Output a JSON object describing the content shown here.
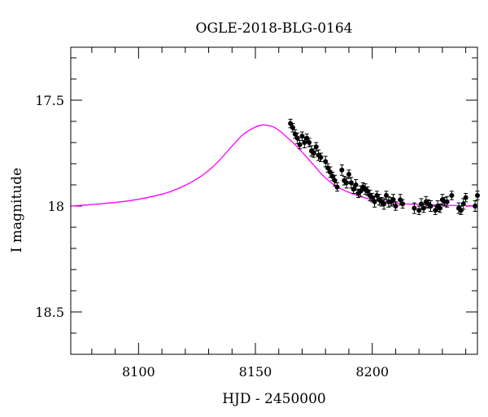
{
  "chart_data": {
    "type": "scatter",
    "title": "OGLE-2018-BLG-0164",
    "xlabel": "HJD - 2450000",
    "ylabel": "I magnitude",
    "xlim": [
      8071,
      8245
    ],
    "ylim": [
      18.7,
      17.25
    ],
    "y_inverted": true,
    "grid": false,
    "x_ticks": {
      "major": [
        8100,
        8150,
        8200
      ],
      "labels": [
        "8100",
        "8150",
        "8200"
      ],
      "minor_step": 10
    },
    "y_ticks": {
      "major": [
        17.5,
        18,
        18.5
      ],
      "labels": [
        "17.5",
        "18",
        "18.5"
      ],
      "minor_step": 0.1
    },
    "colors": {
      "model": "#ff00ff",
      "points": "#000000"
    },
    "model_curve": {
      "name": "",
      "x": [
        8071,
        8080,
        8090,
        8100,
        8110,
        8115,
        8120,
        8125,
        8130,
        8135,
        8140,
        8145,
        8150,
        8153,
        8156,
        8158,
        8160,
        8162,
        8164,
        8166,
        8168,
        8170,
        8172,
        8174,
        8176,
        8178,
        8180,
        8183,
        8186,
        8190,
        8195,
        8200,
        8205,
        8210,
        8215,
        8220,
        8225,
        8230,
        8235,
        8240,
        8245
      ],
      "y": [
        18.0,
        17.993,
        17.983,
        17.968,
        17.944,
        17.926,
        17.902,
        17.872,
        17.832,
        17.779,
        17.717,
        17.66,
        17.627,
        17.617,
        17.62,
        17.628,
        17.642,
        17.66,
        17.68,
        17.7,
        17.722,
        17.745,
        17.77,
        17.795,
        17.82,
        17.845,
        17.867,
        17.895,
        17.915,
        17.935,
        17.955,
        17.97,
        17.978,
        17.985,
        17.99,
        17.992,
        17.994,
        17.996,
        17.997,
        17.998,
        17.999
      ]
    },
    "series": [
      {
        "name": "",
        "x": [
          8165,
          8166,
          8167,
          8168,
          8169,
          8170,
          8171,
          8172,
          8173,
          8174,
          8175,
          8176,
          8177,
          8178,
          8180,
          8181,
          8182,
          8183,
          8184,
          8185,
          8187,
          8188,
          8189,
          8190,
          8191,
          8192,
          8193,
          8194,
          8195,
          8196,
          8197,
          8198,
          8199,
          8200,
          8201,
          8202,
          8203,
          8204,
          8205,
          8206,
          8207,
          8208,
          8209,
          8210,
          8212,
          8213,
          8218,
          8220,
          8221,
          8222,
          8223,
          8224,
          8225,
          8227,
          8228,
          8229,
          8230,
          8231,
          8232,
          8234,
          8237,
          8238,
          8239,
          8240,
          8244,
          8245
        ],
        "y": [
          17.61,
          17.63,
          17.66,
          17.68,
          17.71,
          17.67,
          17.7,
          17.68,
          17.7,
          17.74,
          17.75,
          17.72,
          17.76,
          17.77,
          17.79,
          17.82,
          17.84,
          17.86,
          17.88,
          17.91,
          17.83,
          17.88,
          17.89,
          17.85,
          17.89,
          17.92,
          17.9,
          17.94,
          17.93,
          17.91,
          17.92,
          17.93,
          17.95,
          17.96,
          17.98,
          17.95,
          17.97,
          17.98,
          17.99,
          17.95,
          17.98,
          17.98,
          17.97,
          18.0,
          17.97,
          17.99,
          18.01,
          18.02,
          17.99,
          18.01,
          17.98,
          17.99,
          18.0,
          18.02,
          18.0,
          18.01,
          17.97,
          17.98,
          17.98,
          17.95,
          18.01,
          18.02,
          17.99,
          17.96,
          18.0,
          17.95
        ],
        "yerr": [
          0.02,
          0.02,
          0.02,
          0.025,
          0.02,
          0.02,
          0.025,
          0.02,
          0.02,
          0.025,
          0.02,
          0.02,
          0.025,
          0.02,
          0.025,
          0.02,
          0.025,
          0.02,
          0.025,
          0.02,
          0.025,
          0.02,
          0.025,
          0.02,
          0.025,
          0.02,
          0.025,
          0.02,
          0.025,
          0.02,
          0.025,
          0.02,
          0.025,
          0.02,
          0.025,
          0.02,
          0.025,
          0.02,
          0.025,
          0.02,
          0.025,
          0.02,
          0.025,
          0.02,
          0.025,
          0.02,
          0.025,
          0.02,
          0.025,
          0.02,
          0.025,
          0.02,
          0.025,
          0.02,
          0.025,
          0.02,
          0.025,
          0.02,
          0.025,
          0.02,
          0.025,
          0.02,
          0.025,
          0.02,
          0.025,
          0.02
        ]
      }
    ]
  }
}
